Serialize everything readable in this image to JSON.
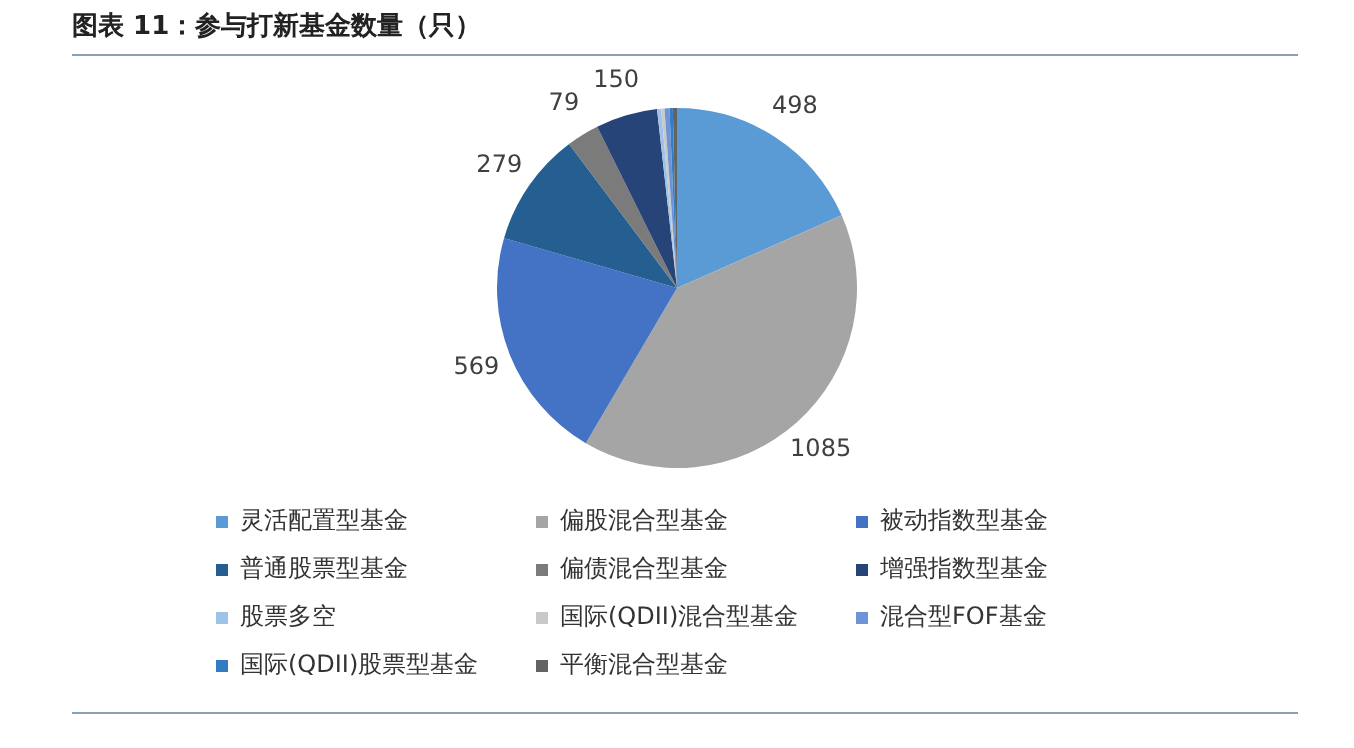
{
  "chart_data": {
    "type": "pie",
    "title": "图表 11：参与打新基金数量（只）",
    "categories": [
      "灵活配置型基金",
      "偏股混合型基金",
      "被动指数型基金",
      "普通股票型基金",
      "偏债混合型基金",
      "增强指数型基金",
      "股票多空",
      "国际(QDII)混合型基金",
      "混合型FOF基金",
      "国际(QDII)股票型基金",
      "平衡混合型基金"
    ],
    "values": [
      498,
      1085,
      569,
      279,
      79,
      150,
      10,
      8,
      12,
      8,
      10
    ],
    "value_labels": [
      "498",
      "1085",
      "569",
      "279",
      "79",
      "150",
      null,
      null,
      null,
      null,
      null
    ],
    "colors": [
      "#5b9bd5",
      "#a5a5a5",
      "#4472c4",
      "#255e91",
      "#7b7b7b",
      "#264478",
      "#9dc3e6",
      "#c9c9c9",
      "#6f94d6",
      "#327dc2",
      "#636363"
    ],
    "legend": "bottom"
  }
}
